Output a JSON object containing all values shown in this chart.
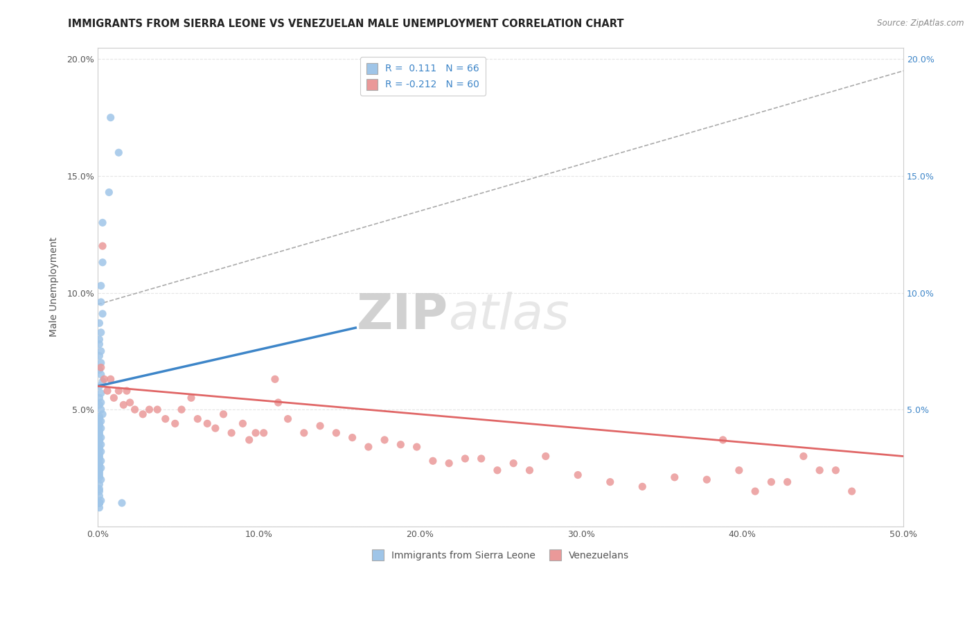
{
  "title": "IMMIGRANTS FROM SIERRA LEONE VS VENEZUELAN MALE UNEMPLOYMENT CORRELATION CHART",
  "source": "Source: ZipAtlas.com",
  "ylabel": "Male Unemployment",
  "xlim": [
    0.0,
    0.5
  ],
  "ylim": [
    0.0,
    0.205
  ],
  "xtick_labels": [
    "0.0%",
    "10.0%",
    "20.0%",
    "30.0%",
    "40.0%",
    "50.0%"
  ],
  "xtick_vals": [
    0.0,
    0.1,
    0.2,
    0.3,
    0.4,
    0.5
  ],
  "ytick_labels_left": [
    "",
    "5.0%",
    "10.0%",
    "15.0%",
    "20.0%"
  ],
  "ytick_labels_right": [
    "",
    "5.0%",
    "10.0%",
    "15.0%",
    "20.0%"
  ],
  "ytick_vals": [
    0.0,
    0.05,
    0.1,
    0.15,
    0.2
  ],
  "blue_color": "#9fc5e8",
  "pink_color": "#ea9999",
  "blue_line_color": "#3d85c8",
  "pink_line_color": "#e06666",
  "legend_r_blue": "0.111",
  "legend_n_blue": "66",
  "legend_r_pink": "-0.212",
  "legend_n_pink": "60",
  "watermark_zip": "ZIP",
  "watermark_atlas": "atlas",
  "blue_scatter_x": [
    0.008,
    0.013,
    0.007,
    0.003,
    0.003,
    0.002,
    0.002,
    0.003,
    0.001,
    0.002,
    0.001,
    0.001,
    0.002,
    0.001,
    0.002,
    0.001,
    0.002,
    0.003,
    0.001,
    0.002,
    0.001,
    0.002,
    0.001,
    0.002,
    0.003,
    0.001,
    0.001,
    0.002,
    0.001,
    0.001,
    0.002,
    0.001,
    0.001,
    0.001,
    0.002,
    0.001,
    0.001,
    0.002,
    0.001,
    0.001,
    0.002,
    0.001,
    0.001,
    0.001,
    0.002,
    0.001,
    0.001,
    0.002,
    0.001,
    0.001,
    0.001,
    0.001,
    0.002,
    0.001,
    0.001,
    0.001,
    0.001,
    0.002,
    0.015,
    0.001,
    0.001,
    0.001,
    0.001,
    0.001,
    0.001,
    0.001
  ],
  "blue_scatter_y": [
    0.175,
    0.16,
    0.143,
    0.13,
    0.113,
    0.103,
    0.096,
    0.091,
    0.087,
    0.083,
    0.08,
    0.078,
    0.075,
    0.073,
    0.07,
    0.067,
    0.065,
    0.062,
    0.06,
    0.057,
    0.055,
    0.053,
    0.052,
    0.05,
    0.048,
    0.047,
    0.046,
    0.045,
    0.044,
    0.043,
    0.042,
    0.041,
    0.04,
    0.039,
    0.038,
    0.037,
    0.036,
    0.035,
    0.034,
    0.033,
    0.032,
    0.031,
    0.03,
    0.029,
    0.028,
    0.027,
    0.026,
    0.025,
    0.024,
    0.023,
    0.022,
    0.021,
    0.02,
    0.018,
    0.016,
    0.015,
    0.013,
    0.011,
    0.01,
    0.01,
    0.01,
    0.01,
    0.01,
    0.01,
    0.01,
    0.008
  ],
  "pink_scatter_x": [
    0.002,
    0.004,
    0.003,
    0.006,
    0.008,
    0.01,
    0.013,
    0.016,
    0.018,
    0.02,
    0.023,
    0.028,
    0.032,
    0.037,
    0.042,
    0.048,
    0.052,
    0.058,
    0.062,
    0.068,
    0.073,
    0.078,
    0.083,
    0.09,
    0.094,
    0.098,
    0.103,
    0.11,
    0.112,
    0.118,
    0.128,
    0.138,
    0.148,
    0.158,
    0.168,
    0.178,
    0.188,
    0.198,
    0.208,
    0.218,
    0.228,
    0.238,
    0.248,
    0.258,
    0.268,
    0.278,
    0.298,
    0.318,
    0.338,
    0.358,
    0.378,
    0.388,
    0.398,
    0.408,
    0.418,
    0.428,
    0.438,
    0.448,
    0.458,
    0.468
  ],
  "pink_scatter_y": [
    0.068,
    0.063,
    0.12,
    0.058,
    0.063,
    0.055,
    0.058,
    0.052,
    0.058,
    0.053,
    0.05,
    0.048,
    0.05,
    0.05,
    0.046,
    0.044,
    0.05,
    0.055,
    0.046,
    0.044,
    0.042,
    0.048,
    0.04,
    0.044,
    0.037,
    0.04,
    0.04,
    0.063,
    0.053,
    0.046,
    0.04,
    0.043,
    0.04,
    0.038,
    0.034,
    0.037,
    0.035,
    0.034,
    0.028,
    0.027,
    0.029,
    0.029,
    0.024,
    0.027,
    0.024,
    0.03,
    0.022,
    0.019,
    0.017,
    0.021,
    0.02,
    0.037,
    0.024,
    0.015,
    0.019,
    0.019,
    0.03,
    0.024,
    0.024,
    0.015
  ],
  "blue_trendline_x": [
    0.0,
    0.16
  ],
  "blue_trendline_y": [
    0.06,
    0.085
  ],
  "pink_trendline_x": [
    0.0,
    0.5
  ],
  "pink_trendline_y": [
    0.06,
    0.03
  ],
  "dashed_line_x": [
    0.0,
    0.5
  ],
  "dashed_line_y": [
    0.095,
    0.195
  ],
  "title_fontsize": 10.5,
  "axis_label_fontsize": 10,
  "tick_fontsize": 9,
  "legend_fontsize": 10,
  "watermark_fontsize_zip": 52,
  "watermark_fontsize_atlas": 52
}
